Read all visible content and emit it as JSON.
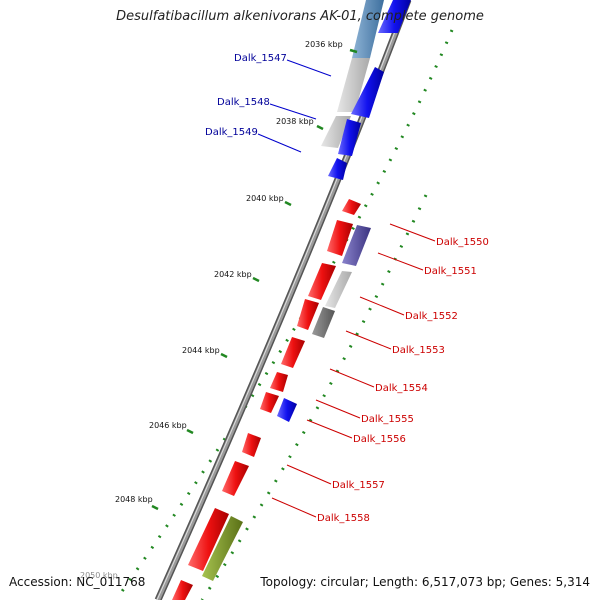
{
  "title": "Desulfatibacillum alkenivorans AK-01, complete genome",
  "footer": {
    "accession": "Accession: NC_011768",
    "summary": "Topology: circular; Length: 6,517,073 bp; Genes: 5,314"
  },
  "colors": {
    "forward_gene": "#ee1111",
    "reverse_gene": "#1111ee",
    "forward_label": "#cc0000",
    "reverse_label": "#000099",
    "tick": "#228822",
    "backbone": "#777777"
  },
  "kbp_marks": [
    "2036 kbp",
    "2038 kbp",
    "2040 kbp",
    "2042 kbp",
    "2044 kbp",
    "2046 kbp",
    "2048 kbp",
    "2050 kbp"
  ],
  "gene_labels": [
    {
      "text": "Dalk_1547",
      "strand": "reverse"
    },
    {
      "text": "Dalk_1548",
      "strand": "reverse"
    },
    {
      "text": "Dalk_1549",
      "strand": "reverse"
    },
    {
      "text": "Dalk_1550",
      "strand": "forward"
    },
    {
      "text": "Dalk_1551",
      "strand": "forward"
    },
    {
      "text": "Dalk_1552",
      "strand": "forward"
    },
    {
      "text": "Dalk_1553",
      "strand": "forward"
    },
    {
      "text": "Dalk_1554",
      "strand": "forward"
    },
    {
      "text": "Dalk_1555",
      "strand": "forward"
    },
    {
      "text": "Dalk_1556",
      "strand": "forward"
    },
    {
      "text": "Dalk_1557",
      "strand": "forward"
    },
    {
      "text": "Dalk_1558",
      "strand": "forward"
    }
  ]
}
